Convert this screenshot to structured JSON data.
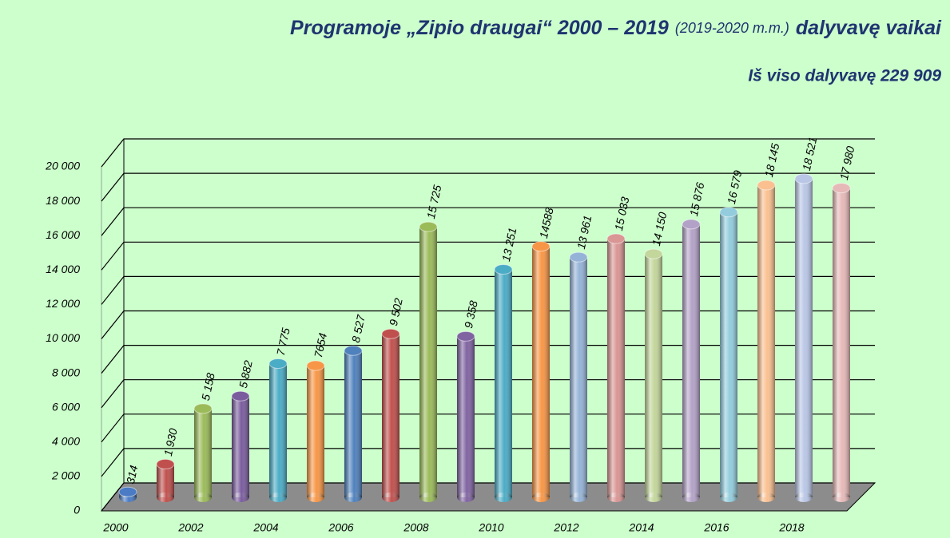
{
  "chart_data": {
    "type": "bar",
    "title": "Programoje „Zipio draugai“ 2000 – 2019",
    "title_note": "(2019-2020 m.m.)",
    "title_end": "dalyvavę vaikai",
    "subtitle": "Iš viso dalyvavę 229 909",
    "categories": [
      "2000",
      null,
      "2002",
      null,
      "2004",
      null,
      "2006",
      null,
      "2008",
      null,
      "2010",
      null,
      "2012",
      null,
      "2014",
      null,
      "2016",
      null,
      "2018",
      null
    ],
    "values": [
      314,
      1930,
      5158,
      5882,
      7775,
      7654,
      8527,
      9502,
      15725,
      9358,
      13251,
      14588,
      13961,
      15033,
      14150,
      15876,
      16579,
      18145,
      18521,
      17980
    ],
    "value_labels": [
      "314",
      "1 930",
      "5 158",
      "5 882",
      "7 775",
      "7654",
      "8 527",
      "9 502",
      "15 725",
      "9 358",
      "13 251",
      "14588",
      "13 961",
      "15 033",
      "14 150",
      "15 876",
      "16 579",
      "18 145",
      "18 521",
      "17 980"
    ],
    "colors": [
      "#4a7bc4",
      "#c0504d",
      "#9bbb59",
      "#7a5c9e",
      "#4bacc6",
      "#f79646",
      "#4f81bd",
      "#c0504d",
      "#9bbb59",
      "#8064a2",
      "#4bacc6",
      "#f79646",
      "#95b3d7",
      "#d99694",
      "#c3d69b",
      "#b3a2c7",
      "#93cddd",
      "#fac090",
      "#b9c6e6",
      "#e6b9b8"
    ],
    "ylim": [
      0,
      20000
    ],
    "yticks": [
      0,
      {
        "value": 2000,
        "label": "2 000"
      },
      {
        "value": 4000,
        "label": "4 000"
      },
      {
        "value": 6000,
        "label": "6 000"
      },
      {
        "value": 8000,
        "label": "8 000"
      },
      {
        "value": 10000,
        "label": "10 000"
      },
      {
        "value": 12000,
        "label": "12 000"
      },
      {
        "value": 14000,
        "label": "14 000"
      },
      {
        "value": 16000,
        "label": "16 000"
      },
      {
        "value": 18000,
        "label": "18 000"
      },
      {
        "value": 20000,
        "label": "20 000"
      }
    ],
    "grid": true
  }
}
